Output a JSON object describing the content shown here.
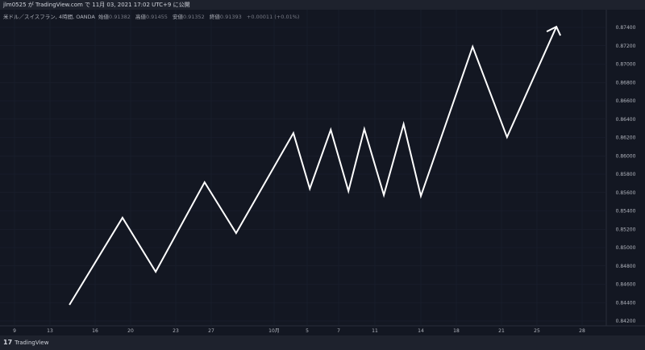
{
  "header": {
    "title": "jlm0525 が TradingView.com で 11月 03, 2021 17:02 UTC+9 に公開"
  },
  "legend": {
    "symbol": "米ドル／スイスフラン, 4時間, OANDA",
    "open_label": "始値",
    "open": "0.91382",
    "high_label": "高値",
    "high": "0.91455",
    "low_label": "安値",
    "low": "0.91352",
    "close_label": "終値",
    "close": "0.91393",
    "change": "+0.00011 (+0.01%)"
  },
  "footer": {
    "logo_text": "TradingView",
    "logo_icon": "tradingview-logo-icon"
  },
  "colors": {
    "background": "#131722",
    "line": "#ffffff",
    "text": "#b2b5be"
  },
  "chart_data": {
    "type": "line",
    "ylim": [
      0.842,
      0.8745
    ],
    "y_ticks": [
      "0.84200",
      "0.84400",
      "0.84600",
      "0.84800",
      "0.85000",
      "0.85200",
      "0.85400",
      "0.85600",
      "0.85800",
      "0.86000",
      "0.86200",
      "0.86400",
      "0.86600",
      "0.86800",
      "0.87000",
      "0.87200",
      "0.87400"
    ],
    "x_ticks": [
      {
        "label": "9",
        "date": "2021-09-09"
      },
      {
        "label": "13",
        "date": "2021-09-13"
      },
      {
        "label": "16",
        "date": "2021-09-16"
      },
      {
        "label": "20",
        "date": "2021-09-20"
      },
      {
        "label": "23",
        "date": "2021-09-23"
      },
      {
        "label": "27",
        "date": "2021-09-27"
      },
      {
        "label": "10月",
        "date": "2021-10-01"
      },
      {
        "label": "5",
        "date": "2021-10-05"
      },
      {
        "label": "7",
        "date": "2021-10-07"
      },
      {
        "label": "11",
        "date": "2021-10-11"
      },
      {
        "label": "14",
        "date": "2021-10-14"
      },
      {
        "label": "18",
        "date": "2021-10-18"
      },
      {
        "label": "21",
        "date": "2021-10-21"
      },
      {
        "label": "25",
        "date": "2021-10-25"
      },
      {
        "label": "28",
        "date": "2021-10-28"
      }
    ],
    "grid": true,
    "end_marker": "arrow",
    "series": [
      {
        "points": [
          [
            "2021-09-14T07:00",
            0.84376
          ],
          [
            "2021-09-19T02:00",
            0.85326
          ],
          [
            "2021-09-21T16:00",
            0.84736
          ],
          [
            "2021-09-26T06:00",
            0.85712
          ],
          [
            "2021-09-28T14:00",
            0.85158
          ],
          [
            "2021-10-03T08:00",
            0.86248
          ],
          [
            "2021-10-05T04:00",
            0.85642
          ],
          [
            "2021-10-06T12:00",
            0.86284
          ],
          [
            "2021-10-08T02:00",
            0.85616
          ],
          [
            "2021-10-09T20:00",
            0.86292
          ],
          [
            "2021-10-11T14:00",
            0.85572
          ],
          [
            "2021-10-12T21:00",
            0.86346
          ],
          [
            "2021-10-14T00:00",
            0.85562
          ],
          [
            "2021-10-19T02:00",
            0.8719
          ],
          [
            "2021-10-21T15:00",
            0.86204
          ],
          [
            "2021-10-26T07:00",
            0.87408
          ]
        ]
      }
    ]
  }
}
